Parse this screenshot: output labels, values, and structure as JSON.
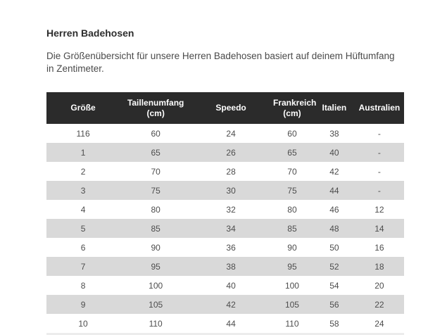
{
  "page": {
    "title": "Herren Badehosen",
    "description": "Die Größenübersicht für unsere Herren Badehosen basiert auf deinem Hüftumfang in Zentimeter."
  },
  "table": {
    "columns": [
      "Größe",
      "Taillenumfang (cm)",
      "Speedo",
      "Frankreich (cm)",
      "Italien",
      "Australien"
    ],
    "rows": [
      [
        "116",
        "60",
        "24",
        "60",
        "38",
        "-"
      ],
      [
        "1",
        "65",
        "26",
        "65",
        "40",
        "-"
      ],
      [
        "2",
        "70",
        "28",
        "70",
        "42",
        "-"
      ],
      [
        "3",
        "75",
        "30",
        "75",
        "44",
        "-"
      ],
      [
        "4",
        "80",
        "32",
        "80",
        "46",
        "12"
      ],
      [
        "5",
        "85",
        "34",
        "85",
        "48",
        "14"
      ],
      [
        "6",
        "90",
        "36",
        "90",
        "50",
        "16"
      ],
      [
        "7",
        "95",
        "38",
        "95",
        "52",
        "18"
      ],
      [
        "8",
        "100",
        "40",
        "100",
        "54",
        "20"
      ],
      [
        "9",
        "105",
        "42",
        "105",
        "56",
        "22"
      ],
      [
        "10",
        "110",
        "44",
        "110",
        "58",
        "24"
      ]
    ],
    "partial_next_row_visible": true
  },
  "colors": {
    "header_bg": "#2b2b2b",
    "header_text": "#ffffff",
    "row_bg": "#ffffff",
    "row_alt_bg": "#d9d9d9",
    "partial_row_bg": "#ececec",
    "cell_text": "#4d4d4d",
    "title_text": "#2d2d2d",
    "body_text": "#4a4a4a",
    "page_bg": "#ffffff"
  }
}
